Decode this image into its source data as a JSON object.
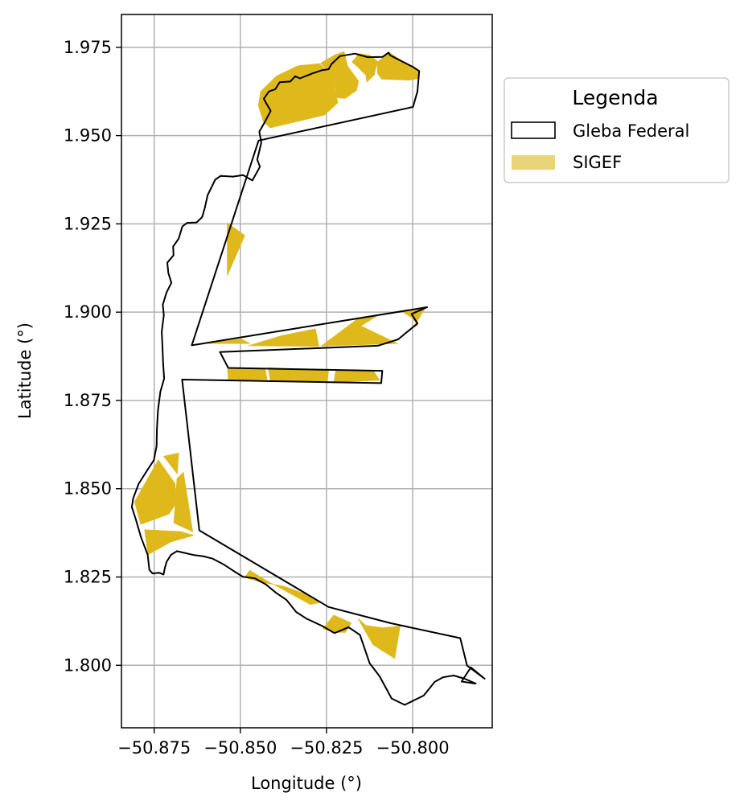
{
  "chart_data": {
    "type": "map",
    "xlabel": "Longitude (°)",
    "ylabel": "Latitude (°)",
    "xlim": [
      -50.8845,
      -50.7769
    ],
    "ylim": [
      1.7823,
      1.9843
    ],
    "xticks": [
      -50.875,
      -50.85,
      -50.825,
      -50.8
    ],
    "xtick_labels": [
      "−50.875",
      "−50.850",
      "−50.825",
      "−50.800"
    ],
    "yticks": [
      1.8,
      1.825,
      1.85,
      1.875,
      1.9,
      1.925,
      1.95,
      1.975
    ],
    "ytick_labels": [
      "1.800",
      "1.825",
      "1.850",
      "1.875",
      "1.900",
      "1.925",
      "1.950",
      "1.975"
    ],
    "grid": true,
    "legend": {
      "title": "Legenda",
      "placement": "outside-right-upper",
      "entries": [
        {
          "label": "Gleba Federal",
          "style": "outline",
          "color": "#000000"
        },
        {
          "label": "SIGEF",
          "style": "fill",
          "color": "#dfb91c"
        }
      ]
    },
    "colors": {
      "sigef": "#dfb91c",
      "sigef_legend": "#ead47a",
      "gleba": "#000000",
      "grid": "#b0b0b0"
    },
    "gleba_federal": [
      [
        [
          -50.7999,
          1.9581
        ],
        [
          -50.7986,
          1.9625
        ],
        [
          -50.7981,
          1.9683
        ],
        [
          -50.8,
          1.9695
        ],
        [
          -50.8065,
          1.9727
        ],
        [
          -50.807,
          1.9735
        ],
        [
          -50.8087,
          1.9723
        ],
        [
          -50.813,
          1.9722
        ],
        [
          -50.8167,
          1.9732
        ],
        [
          -50.8211,
          1.9725
        ],
        [
          -50.8235,
          1.9703
        ],
        [
          -50.8244,
          1.9688
        ],
        [
          -50.8264,
          1.9685
        ],
        [
          -50.8291,
          1.9676
        ],
        [
          -50.8327,
          1.9662
        ],
        [
          -50.8341,
          1.9668
        ],
        [
          -50.8355,
          1.9653
        ],
        [
          -50.8386,
          1.9651
        ],
        [
          -50.8399,
          1.9631
        ],
        [
          -50.8417,
          1.9625
        ],
        [
          -50.8432,
          1.9604
        ],
        [
          -50.8412,
          1.957
        ],
        [
          -50.8427,
          1.9542
        ],
        [
          -50.8445,
          1.9511
        ],
        [
          -50.8439,
          1.948
        ],
        [
          -50.8451,
          1.9432
        ],
        [
          -50.8443,
          1.9412
        ],
        [
          -50.8465,
          1.9373
        ],
        [
          -50.8492,
          1.9388
        ],
        [
          -50.8521,
          1.9384
        ],
        [
          -50.8557,
          1.9386
        ],
        [
          -50.8573,
          1.9375
        ],
        [
          -50.8595,
          1.9331
        ],
        [
          -50.8603,
          1.9296
        ],
        [
          -50.8611,
          1.9269
        ],
        [
          -50.8627,
          1.9254
        ],
        [
          -50.8654,
          1.9253
        ],
        [
          -50.8668,
          1.9243
        ],
        [
          -50.8679,
          1.9208
        ],
        [
          -50.8695,
          1.9186
        ],
        [
          -50.8694,
          1.9161
        ],
        [
          -50.8712,
          1.914
        ],
        [
          -50.8709,
          1.9111
        ],
        [
          -50.87,
          1.9083
        ],
        [
          -50.8714,
          1.9056
        ],
        [
          -50.8725,
          1.9021
        ],
        [
          -50.8722,
          1.8992
        ],
        [
          -50.8728,
          1.8945
        ],
        [
          -50.8726,
          1.8901
        ],
        [
          -50.8724,
          1.8856
        ],
        [
          -50.8721,
          1.8812
        ],
        [
          -50.8732,
          1.8775
        ],
        [
          -50.8739,
          1.8722
        ],
        [
          -50.8742,
          1.8668
        ],
        [
          -50.8743,
          1.8621
        ],
        [
          -50.8751,
          1.8581
        ],
        [
          -50.8775,
          1.8545
        ],
        [
          -50.8795,
          1.8514
        ],
        [
          -50.8811,
          1.8473
        ],
        [
          -50.8815,
          1.8448
        ],
        [
          -50.8804,
          1.8415
        ],
        [
          -50.8788,
          1.8362
        ],
        [
          -50.8769,
          1.8313
        ],
        [
          -50.8764,
          1.827
        ],
        [
          -50.8755,
          1.826
        ],
        [
          -50.8736,
          1.8262
        ],
        [
          -50.8723,
          1.8257
        ],
        [
          -50.8719,
          1.8276
        ],
        [
          -50.8714,
          1.8293
        ],
        [
          -50.8701,
          1.8313
        ],
        [
          -50.8684,
          1.8323
        ],
        [
          -50.8661,
          1.8318
        ],
        [
          -50.8634,
          1.8312
        ],
        [
          -50.8609,
          1.8309
        ],
        [
          -50.858,
          1.8302
        ],
        [
          -50.8549,
          1.8286
        ],
        [
          -50.8521,
          1.8268
        ],
        [
          -50.8493,
          1.8251
        ],
        [
          -50.8457,
          1.8246
        ],
        [
          -50.8426,
          1.8229
        ],
        [
          -50.8396,
          1.8205
        ],
        [
          -50.8366,
          1.8185
        ],
        [
          -50.8338,
          1.8151
        ],
        [
          -50.8308,
          1.8132
        ],
        [
          -50.8262,
          1.8111
        ],
        [
          -50.8227,
          1.8091
        ],
        [
          -50.8186,
          1.8108
        ],
        [
          -50.8153,
          1.8086
        ],
        [
          -50.8125,
          1.8006
        ],
        [
          -50.8096,
          1.7969
        ],
        [
          -50.8061,
          1.7906
        ],
        [
          -50.8023,
          1.7888
        ],
        [
          -50.7968,
          1.7914
        ],
        [
          -50.7936,
          1.7953
        ],
        [
          -50.7912,
          1.7966
        ],
        [
          -50.7881,
          1.7971
        ],
        [
          -50.7849,
          1.7962
        ],
        [
          -50.7817,
          1.7948
        ],
        [
          -50.7858,
          1.7954
        ],
        [
          -50.7831,
          1.7994
        ],
        [
          -50.7791,
          1.7962
        ],
        [
          -50.7842,
          1.7999
        ],
        [
          -50.7862,
          1.8077
        ],
        [
          -50.8063,
          1.8119
        ],
        [
          -50.8244,
          1.8165
        ],
        [
          -50.8619,
          1.8382
        ],
        [
          -50.8669,
          1.8809
        ],
        [
          -50.8091,
          1.8799
        ],
        [
          -50.8088,
          1.8834
        ],
        [
          -50.8535,
          1.8842
        ],
        [
          -50.8559,
          1.8887
        ],
        [
          -50.8101,
          1.8905
        ],
        [
          -50.8042,
          1.8923
        ],
        [
          -50.7986,
          1.8968
        ],
        [
          -50.8003,
          1.8995
        ],
        [
          -50.7958,
          1.9014
        ],
        [
          -50.8641,
          1.8906
        ],
        [
          -50.8447,
          1.9486
        ],
        [
          -50.7999,
          1.9581
        ]
      ]
    ],
    "sigef": [
      [
        [
          -50.8396,
          1.9668
        ],
        [
          -50.8441,
          1.9625
        ],
        [
          -50.8448,
          1.9585
        ],
        [
          -50.8433,
          1.9539
        ],
        [
          -50.8413,
          1.9522
        ],
        [
          -50.8256,
          1.9558
        ],
        [
          -50.8217,
          1.9593
        ],
        [
          -50.8226,
          1.9629
        ],
        [
          -50.8235,
          1.9673
        ],
        [
          -50.8271,
          1.9704
        ],
        [
          -50.8333,
          1.9698
        ],
        [
          -50.8396,
          1.9668
        ]
      ],
      [
        [
          -50.8199,
          1.9738
        ],
        [
          -50.8225,
          1.9729
        ],
        [
          -50.8267,
          1.9705
        ],
        [
          -50.8235,
          1.9674
        ],
        [
          -50.8224,
          1.9628
        ],
        [
          -50.8221,
          1.9607
        ],
        [
          -50.8196,
          1.9605
        ],
        [
          -50.8163,
          1.9628
        ],
        [
          -50.8157,
          1.9654
        ],
        [
          -50.8189,
          1.9697
        ],
        [
          -50.8199,
          1.9738
        ]
      ],
      [
        [
          -50.8176,
          1.9708
        ],
        [
          -50.8162,
          1.9697
        ],
        [
          -50.8136,
          1.9671
        ],
        [
          -50.8133,
          1.9651
        ],
        [
          -50.8111,
          1.9672
        ],
        [
          -50.8102,
          1.9711
        ],
        [
          -50.8125,
          1.9728
        ],
        [
          -50.8156,
          1.9732
        ],
        [
          -50.8176,
          1.9708
        ]
      ],
      [
        [
          -50.8103,
          1.9708
        ],
        [
          -50.8102,
          1.9676
        ],
        [
          -50.809,
          1.966
        ],
        [
          -50.8011,
          1.9657
        ],
        [
          -50.7985,
          1.9661
        ],
        [
          -50.798,
          1.9681
        ],
        [
          -50.8045,
          1.9721
        ],
        [
          -50.8067,
          1.9735
        ],
        [
          -50.8103,
          1.9708
        ]
      ],
      [
        [
          -50.8538,
          1.9253
        ],
        [
          -50.8538,
          1.9103
        ],
        [
          -50.8487,
          1.9217
        ],
        [
          -50.8538,
          1.9253
        ]
      ],
      [
        [
          -50.8612,
          1.8911
        ],
        [
          -50.8497,
          1.8924
        ],
        [
          -50.8472,
          1.8911
        ],
        [
          -50.8612,
          1.8911
        ]
      ],
      [
        [
          -50.8382,
          1.8933
        ],
        [
          -50.8282,
          1.8953
        ],
        [
          -50.8272,
          1.8903
        ],
        [
          -50.8477,
          1.8905
        ],
        [
          -50.8382,
          1.8933
        ]
      ],
      [
        [
          -50.8163,
          1.8979
        ],
        [
          -50.8103,
          1.8989
        ],
        [
          -50.815,
          1.8961
        ],
        [
          -50.8044,
          1.8911
        ],
        [
          -50.8265,
          1.8904
        ],
        [
          -50.8163,
          1.8979
        ]
      ],
      [
        [
          -50.7964,
          1.9011
        ],
        [
          -50.8028,
          1.9
        ],
        [
          -50.8001,
          1.8983
        ],
        [
          -50.7985,
          1.8963
        ],
        [
          -50.7998,
          1.8956
        ],
        [
          -50.7964,
          1.9011
        ]
      ],
      [
        [
          -50.8537,
          1.8839
        ],
        [
          -50.8535,
          1.8805
        ],
        [
          -50.8422,
          1.8809
        ],
        [
          -50.8428,
          1.884
        ],
        [
          -50.8537,
          1.8839
        ]
      ],
      [
        [
          -50.8223,
          1.8837
        ],
        [
          -50.8114,
          1.8834
        ],
        [
          -50.8095,
          1.8807
        ],
        [
          -50.8229,
          1.8801
        ],
        [
          -50.8223,
          1.8837
        ]
      ],
      [
        [
          -50.842,
          1.8843
        ],
        [
          -50.8412,
          1.8803
        ],
        [
          -50.8247,
          1.8805
        ],
        [
          -50.8244,
          1.8834
        ],
        [
          -50.842,
          1.8843
        ]
      ],
      [
        [
          -50.8723,
          1.8592
        ],
        [
          -50.8679,
          1.8601
        ],
        [
          -50.8683,
          1.8542
        ],
        [
          -50.8723,
          1.8592
        ]
      ],
      [
        [
          -50.8807,
          1.8463
        ],
        [
          -50.8789,
          1.8399
        ],
        [
          -50.8707,
          1.8428
        ],
        [
          -50.8687,
          1.8458
        ],
        [
          -50.8689,
          1.8514
        ],
        [
          -50.8738,
          1.8582
        ],
        [
          -50.8807,
          1.8463
        ]
      ],
      [
        [
          -50.8778,
          1.8384
        ],
        [
          -50.8768,
          1.8313
        ],
        [
          -50.8702,
          1.8349
        ],
        [
          -50.8635,
          1.8368
        ],
        [
          -50.8674,
          1.8379
        ],
        [
          -50.8778,
          1.8384
        ]
      ],
      [
        [
          -50.8638,
          1.8378
        ],
        [
          -50.8665,
          1.8547
        ],
        [
          -50.8684,
          1.8529
        ],
        [
          -50.8693,
          1.8403
        ],
        [
          -50.8638,
          1.8378
        ]
      ],
      [
        [
          -50.8487,
          1.8249
        ],
        [
          -50.8446,
          1.8236
        ],
        [
          -50.8374,
          1.8224
        ],
        [
          -50.8319,
          1.8205
        ],
        [
          -50.8264,
          1.8179
        ],
        [
          -50.8297,
          1.8172
        ],
        [
          -50.8368,
          1.821
        ],
        [
          -50.8421,
          1.8238
        ],
        [
          -50.8473,
          1.8269
        ],
        [
          -50.8487,
          1.8249
        ]
      ],
      [
        [
          -50.8195,
          1.8093
        ],
        [
          -50.8226,
          1.8093
        ],
        [
          -50.826,
          1.8104
        ],
        [
          -50.8229,
          1.8142
        ],
        [
          -50.8178,
          1.812
        ],
        [
          -50.8195,
          1.8093
        ]
      ],
      [
        [
          -50.8159,
          1.8133
        ],
        [
          -50.8136,
          1.8113
        ],
        [
          -50.8087,
          1.8106
        ],
        [
          -50.8036,
          1.8111
        ],
        [
          -50.8052,
          1.8019
        ],
        [
          -50.8115,
          1.8058
        ],
        [
          -50.8159,
          1.8133
        ]
      ]
    ]
  }
}
